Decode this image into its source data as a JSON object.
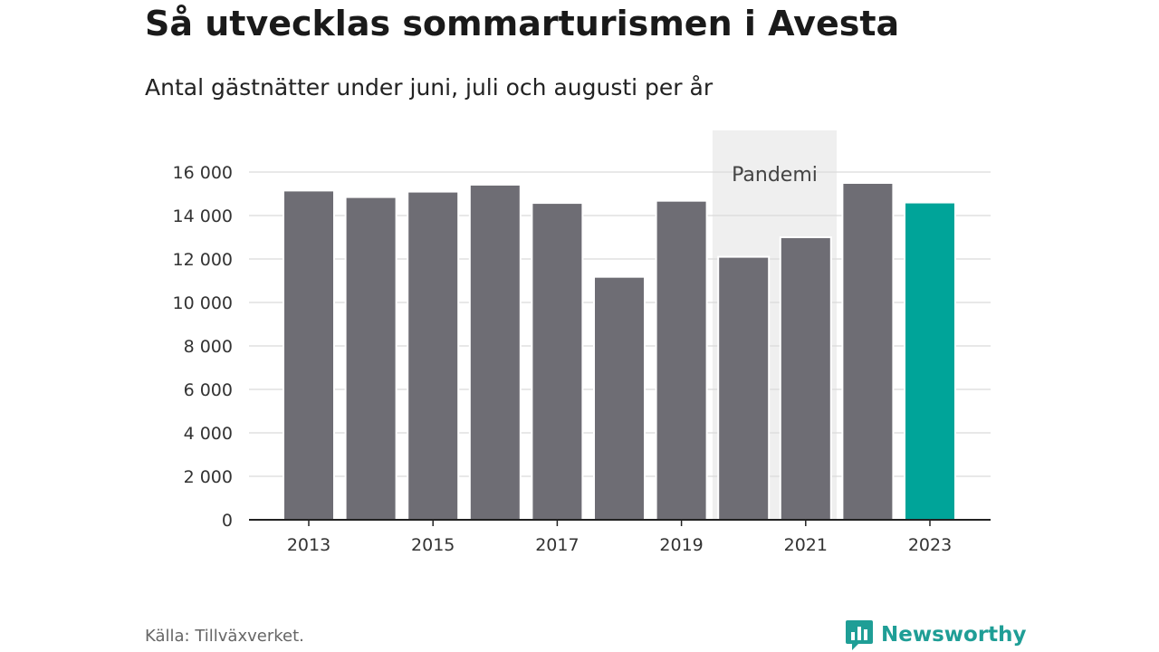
{
  "header": {
    "title": "Så utvecklas sommarturismen i Avesta",
    "subtitle": "Antal gästnätter under juni, juli och augusti per år"
  },
  "footer": {
    "source": "Källa: Tillväxverket.",
    "brand": "Newsworthy",
    "brand_icon": "bar-chart-speech-icon"
  },
  "colors": {
    "bar": "#6e6d74",
    "highlight": "#00a499",
    "annotation_bg": "#efefef",
    "grid": "#d9d9d9",
    "brand": "#1f9e96"
  },
  "chart_data": {
    "type": "bar",
    "title": "Så utvecklas sommarturismen i Avesta",
    "subtitle": "Antal gästnätter under juni, juli och augusti per år",
    "categories": [
      "2013",
      "2014",
      "2015",
      "2016",
      "2017",
      "2018",
      "2019",
      "2020",
      "2021",
      "2022",
      "2023"
    ],
    "values": [
      15150,
      14850,
      15100,
      15420,
      14580,
      11180,
      14680,
      12100,
      13000,
      15500,
      14600
    ],
    "highlight_category": "2023",
    "x_tick_labels": [
      "2013",
      "2015",
      "2017",
      "2019",
      "2021",
      "2023"
    ],
    "y_ticks": [
      0,
      2000,
      4000,
      6000,
      8000,
      10000,
      12000,
      14000,
      16000
    ],
    "y_tick_labels": [
      "0",
      "2 000",
      "4 000",
      "6 000",
      "8 000",
      "10 000",
      "12 000",
      "14 000",
      "16 000"
    ],
    "ylim": [
      0,
      16000
    ],
    "grid": true,
    "xlabel": "",
    "ylabel": "",
    "annotation": {
      "label": "Pandemi",
      "from": "2020",
      "to": "2021"
    },
    "source": "Källa: Tillväxverket."
  }
}
